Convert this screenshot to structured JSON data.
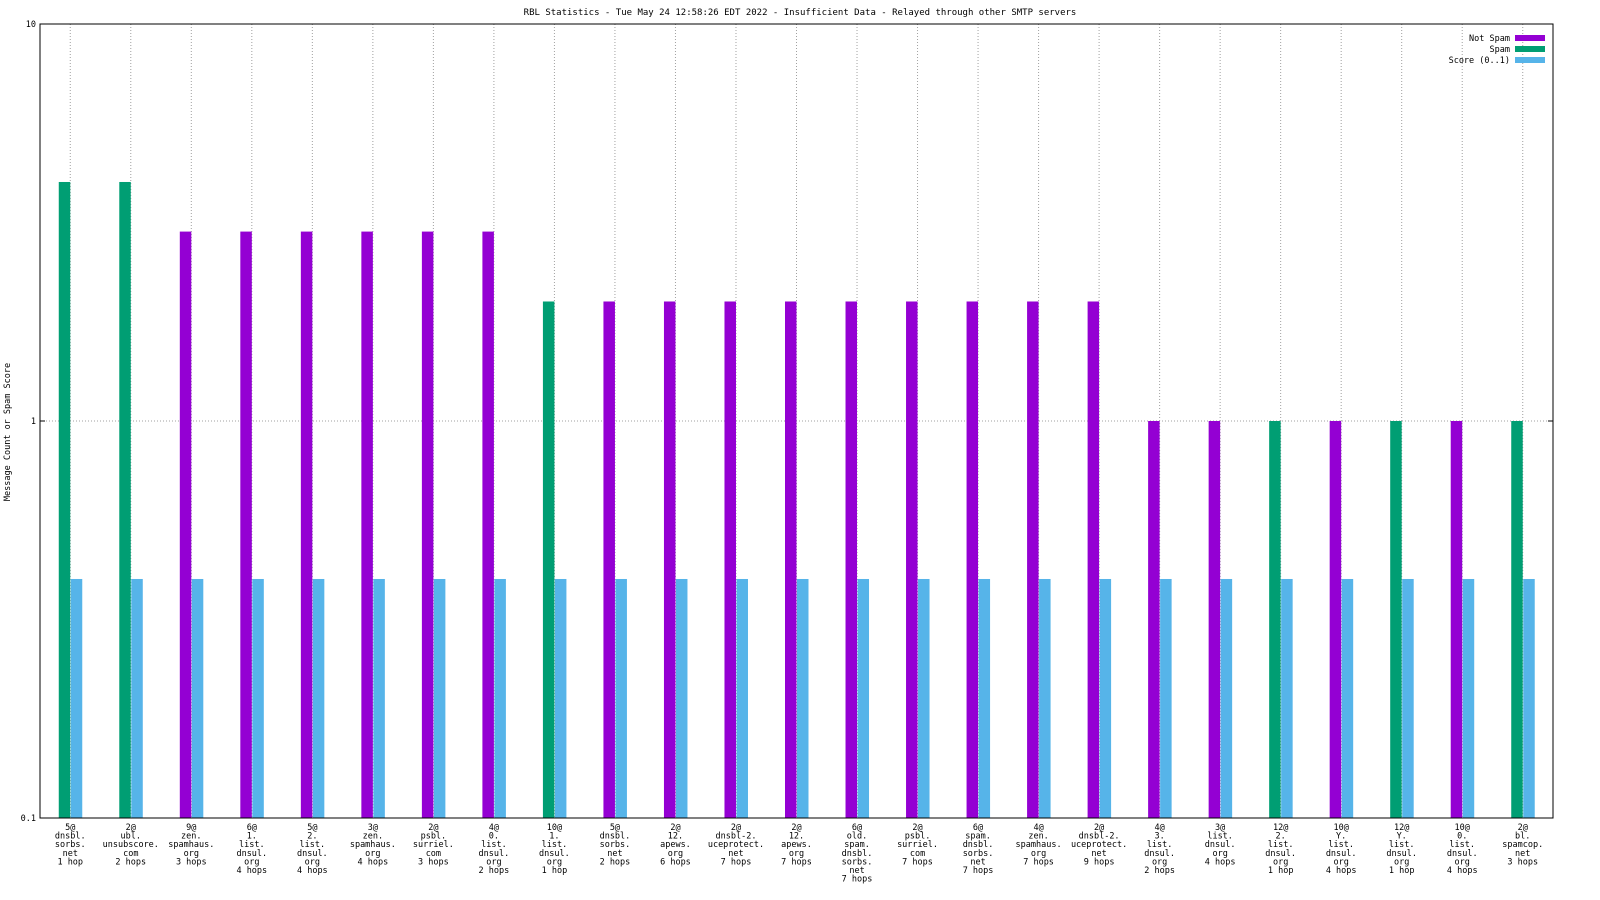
{
  "chart_data": {
    "type": "bar",
    "title": "RBL Statistics - Tue May 24 12:58:26 EDT 2022 - Insufficient Data - Relayed through other SMTP servers",
    "ylabel": "Message Count or Spam Score",
    "xlabel": "",
    "yscale": "log",
    "ylim": [
      0.1,
      10
    ],
    "yticks": [
      "0.1",
      "1",
      "10"
    ],
    "grid": true,
    "legend_position": "top-right",
    "colors": {
      "Not Spam": "#9400d3",
      "Spam": "#009e73",
      "Score (0..1)": "#56b4e9"
    },
    "categories": [
      [
        "5@",
        "dnsbl.",
        "sorbs.",
        "net",
        "1 hop"
      ],
      [
        "2@",
        "ubl.",
        "unsubscore.",
        "com",
        "2 hops"
      ],
      [
        "9@",
        "zen.",
        "spamhaus.",
        "org",
        "3 hops"
      ],
      [
        "6@",
        "1.",
        "list.",
        "dnsul.",
        "org",
        "4 hops"
      ],
      [
        "5@",
        "2.",
        "list.",
        "dnsul.",
        "org",
        "4 hops"
      ],
      [
        "3@",
        "zen.",
        "spamhaus.",
        "org",
        "4 hops"
      ],
      [
        "2@",
        "psbl.",
        "surriel.",
        "com",
        "3 hops"
      ],
      [
        "4@",
        "0.",
        "list.",
        "dnsul.",
        "org",
        "2 hops"
      ],
      [
        "10@",
        "1.",
        "list.",
        "dnsul.",
        "org",
        "1 hop"
      ],
      [
        "5@",
        "dnsbl.",
        "sorbs.",
        "net",
        "2 hops"
      ],
      [
        "2@",
        "12.",
        "apews.",
        "org",
        "6 hops"
      ],
      [
        "2@",
        "dnsbl-2.",
        "uceprotect.",
        "net",
        "7 hops"
      ],
      [
        "2@",
        "12.",
        "apews.",
        "org",
        "7 hops"
      ],
      [
        "6@",
        "old.",
        "spam.",
        "dnsbl.",
        "sorbs.",
        "net",
        "7 hops"
      ],
      [
        "2@",
        "psbl.",
        "surriel.",
        "com",
        "7 hops"
      ],
      [
        "6@",
        "spam.",
        "dnsbl.",
        "sorbs.",
        "net",
        "7 hops"
      ],
      [
        "4@",
        "zen.",
        "spamhaus.",
        "org",
        "7 hops"
      ],
      [
        "2@",
        "dnsbl-2.",
        "uceprotect.",
        "net",
        "9 hops"
      ],
      [
        "4@",
        "3.",
        "list.",
        "dnsul.",
        "org",
        "2 hops"
      ],
      [
        "3@",
        "list.",
        "dnsul.",
        "org",
        "4 hops"
      ],
      [
        "12@",
        "2.",
        "list.",
        "dnsul.",
        "org",
        "1 hop"
      ],
      [
        "10@",
        "Y.",
        "list.",
        "dnsul.",
        "org",
        "4 hops"
      ],
      [
        "12@",
        "Y.",
        "list.",
        "dnsul.",
        "org",
        "1 hop"
      ],
      [
        "10@",
        "0.",
        "list.",
        "dnsul.",
        "org",
        "4 hops"
      ],
      [
        "2@",
        "bl.",
        "spamcop.",
        "net",
        "3 hops"
      ]
    ],
    "series": [
      {
        "name": "Not Spam",
        "values": [
          0,
          0,
          3,
          3,
          3,
          3,
          3,
          3,
          0,
          2,
          2,
          2,
          2,
          2,
          2,
          2,
          2,
          2,
          1,
          1,
          0,
          1,
          0,
          1,
          0
        ]
      },
      {
        "name": "Spam",
        "values": [
          4,
          4,
          0,
          0,
          0,
          0,
          0,
          0,
          2,
          0,
          0,
          0,
          0,
          0,
          0,
          0,
          0,
          0,
          0,
          0,
          1,
          0,
          1,
          0,
          1
        ]
      },
      {
        "name": "Score (0..1)",
        "values": [
          0.4,
          0.4,
          0.4,
          0.4,
          0.4,
          0.4,
          0.4,
          0.4,
          0.4,
          0.4,
          0.4,
          0.4,
          0.4,
          0.4,
          0.4,
          0.4,
          0.4,
          0.4,
          0.4,
          0.4,
          0.4,
          0.4,
          0.4,
          0.4,
          0.4
        ]
      }
    ]
  }
}
